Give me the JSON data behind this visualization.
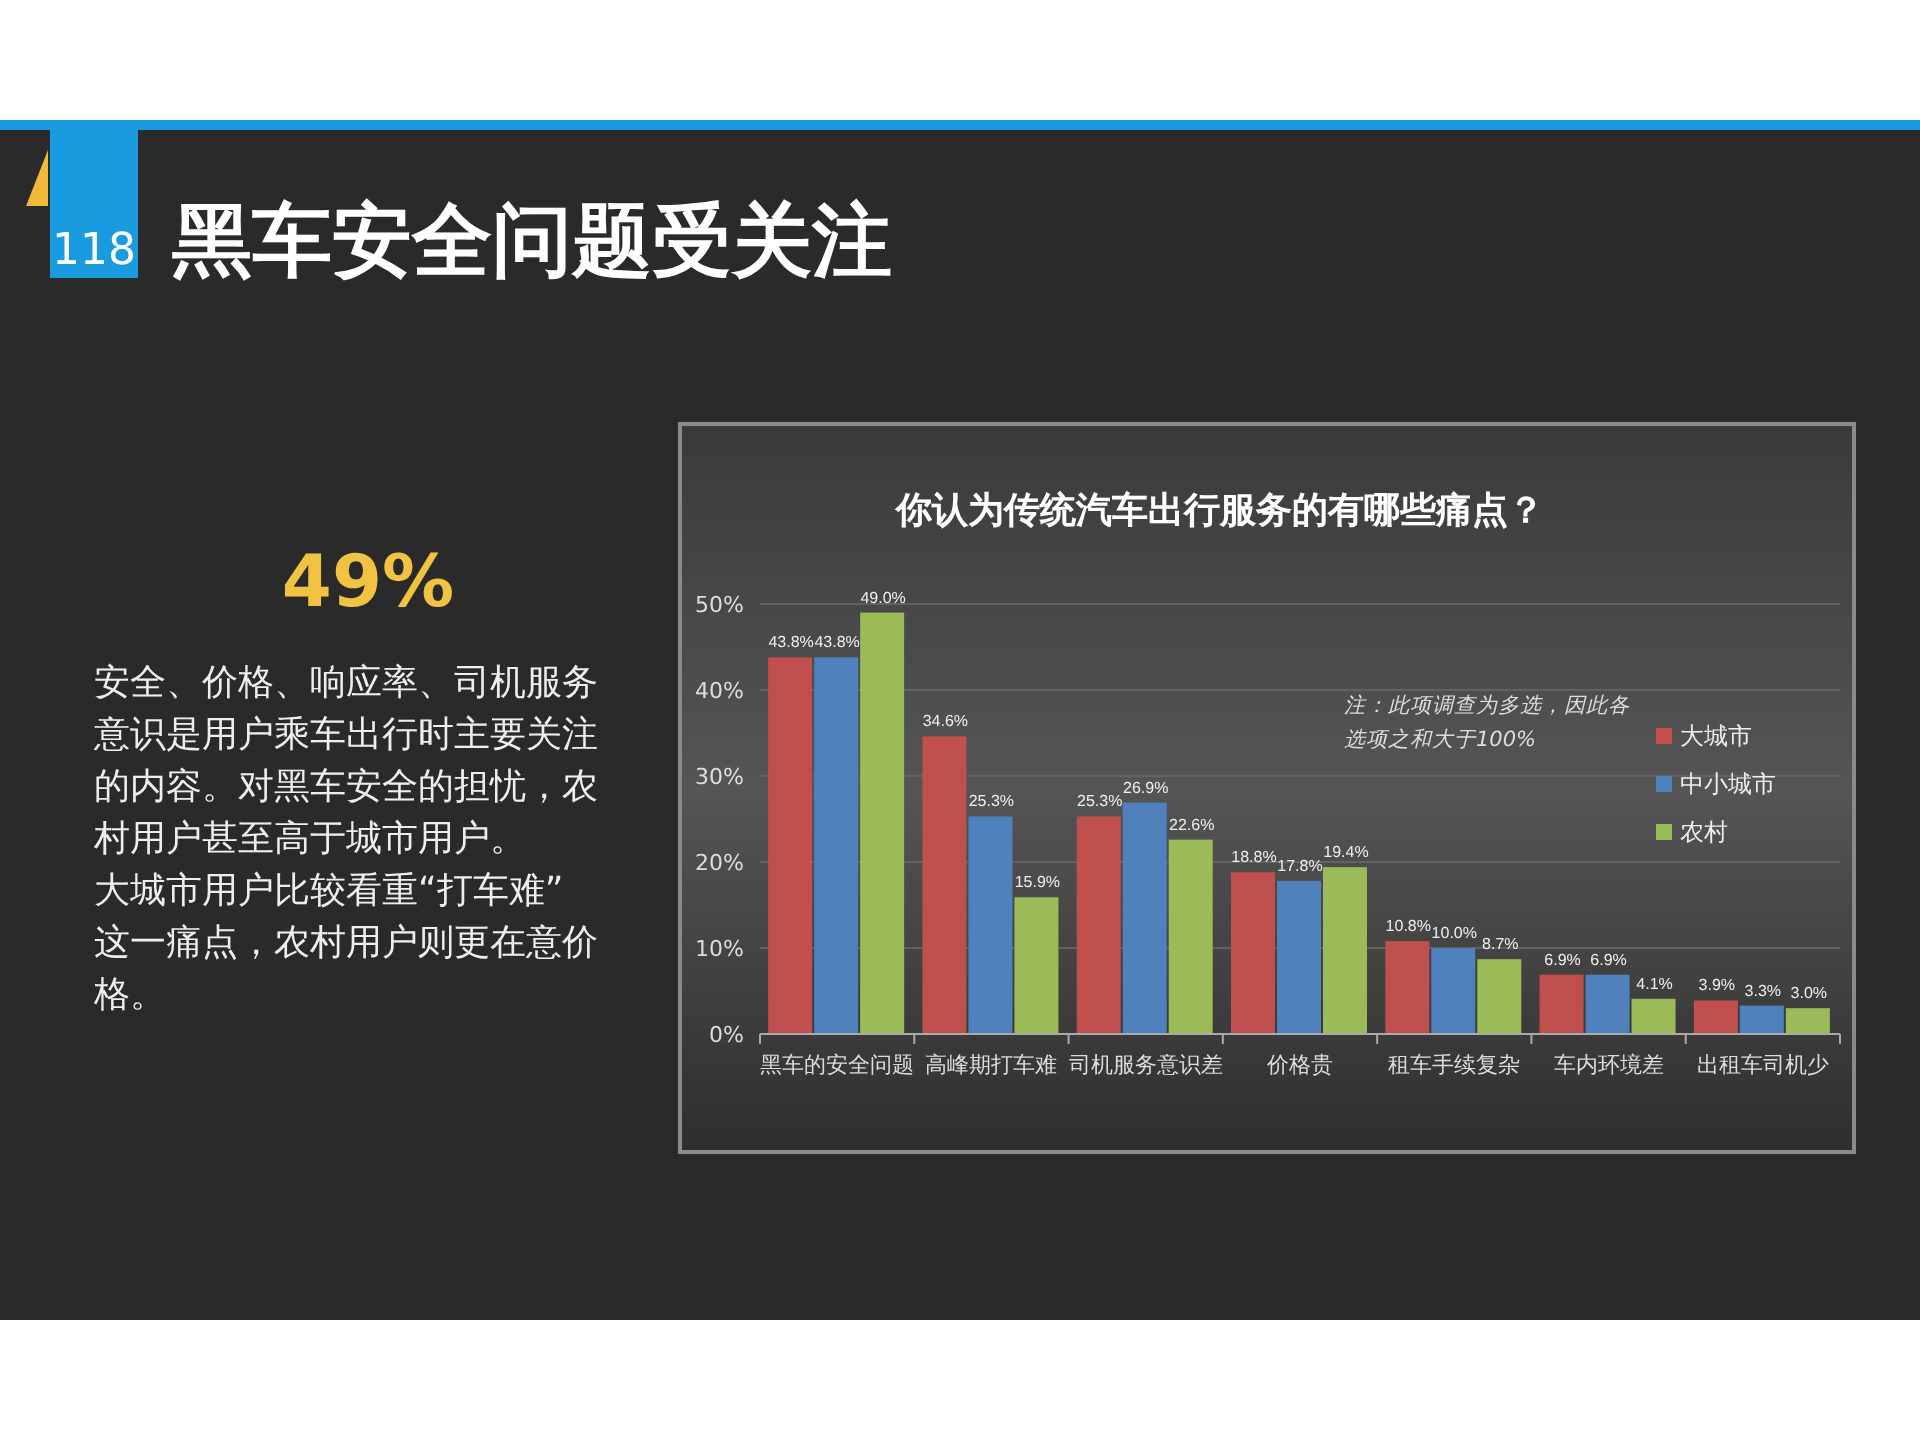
{
  "chart_data": {
    "type": "bar",
    "title": "你认为传统汽车出行服务的有哪些痛点？",
    "categories": [
      "黑车的安全问题",
      "高峰期打车难",
      "司机服务意识差",
      "价格贵",
      "租车手续复杂",
      "车内环境差",
      "出租车司机少"
    ],
    "series": [
      {
        "name": "大城市",
        "color": "#c0504d",
        "values": [
          43.8,
          34.6,
          25.3,
          18.8,
          10.8,
          6.9,
          3.9
        ],
        "value_labels": [
          "43.8%",
          "34.6%",
          "25.3%",
          "18.8%",
          "10.8%",
          "6.9%",
          "3.9%"
        ]
      },
      {
        "name": "中小城市",
        "color": "#4f81bd",
        "values": [
          43.8,
          25.3,
          26.9,
          17.8,
          10.0,
          6.9,
          3.3
        ],
        "value_labels": [
          "43.8%",
          "25.3%",
          "26.9%",
          "17.8%",
          "10.0%",
          "6.9%",
          "3.3%"
        ]
      },
      {
        "name": "农村",
        "color": "#9bbb59",
        "values": [
          49.0,
          15.9,
          22.6,
          19.4,
          8.7,
          4.1,
          3.0
        ],
        "value_labels": [
          "49.0%",
          "15.9%",
          "22.6%",
          "19.4%",
          "8.7%",
          "4.1%",
          "3.0%"
        ]
      }
    ],
    "ylim": [
      0,
      50
    ],
    "yticks": [
      {
        "value": 0,
        "label": "0%"
      },
      {
        "value": 10,
        "label": "10%"
      },
      {
        "value": 20,
        "label": "20%"
      },
      {
        "value": 30,
        "label": "30%"
      },
      {
        "value": 40,
        "label": "40%"
      },
      {
        "value": 50,
        "label": "50%"
      }
    ],
    "grid": "y",
    "legend": "right",
    "annotations": [
      "黑车安全问题受关注",
      "118",
      "49%",
      "安全、价格、响应率、司机服务意识是用户乘车出行时主要关注的内容。对黑车安全的担忧，农村用户甚至高于城市用户。",
      "大城市用户比较看重“打车难”这一痛点，农村用户则更在意价格。",
      "注：此项调查为多选，因此各选项之和大于100%"
    ]
  }
}
